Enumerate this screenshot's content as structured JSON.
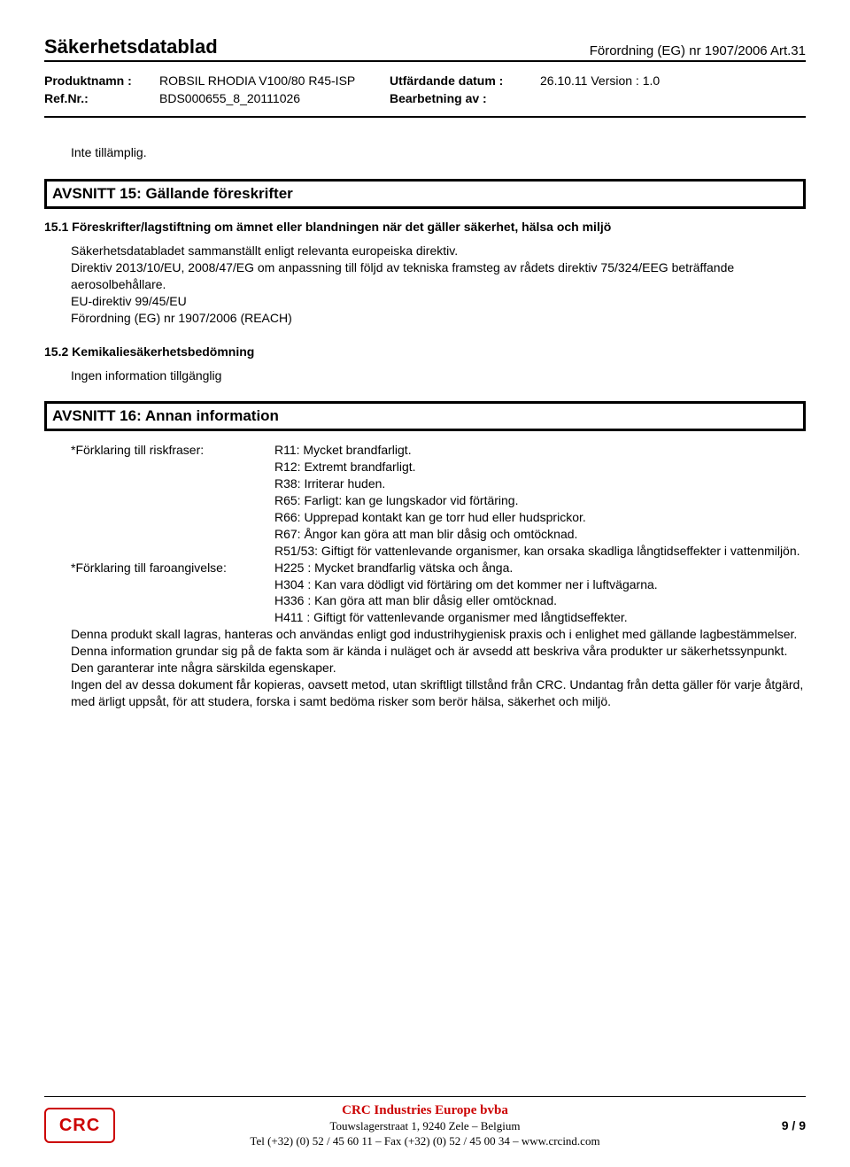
{
  "header": {
    "doc_title": "Säkerhetsdatablad",
    "regulation": "Förordning (EG) nr 1907/2006 Art.31",
    "product_label": "Produktnamn :",
    "product_value": "ROBSIL RHODIA V100/80 R45-ISP",
    "ref_label": "Ref.Nr.:",
    "ref_value": "BDS000655_8_20111026",
    "issued_label": "Utfärdande datum :",
    "issued_value": "26.10.11 Version : 1.0",
    "revision_label": "Bearbetning av :",
    "revision_value": ""
  },
  "pre_text": "Inte tillämplig.",
  "section15": {
    "title": "AVSNITT 15: Gällande föreskrifter",
    "sub1_title": "15.1 Föreskrifter/lagstiftning om ämnet eller blandningen när det gäller säkerhet, hälsa och miljö",
    "sub1_body": "Säkerhetsdatabladet sammanställt enligt relevanta europeiska direktiv.\nDirektiv 2013/10/EU, 2008/47/EG om anpassning till följd av tekniska framsteg av rådets direktiv 75/324/EEG beträffande aerosolbehållare.\nEU-direktiv 99/45/EU\nFörordning (EG) nr 1907/2006 (REACH)",
    "sub2_title": "15.2 Kemikaliesäkerhetsbedömning",
    "sub2_body": "Ingen information tillgänglig"
  },
  "section16": {
    "title": "AVSNITT 16: Annan information",
    "row1_label": "*Förklaring till riskfraser:",
    "row1_lines": [
      "R11: Mycket brandfarligt.",
      "R12: Extremt brandfarligt.",
      "R38: Irriterar huden.",
      "R65: Farligt: kan ge lungskador vid förtäring.",
      "R66: Upprepad kontakt kan ge torr hud eller hudsprickor.",
      "R67: Ångor kan göra att man blir dåsig och omtöcknad.",
      "R51/53: Giftigt för vattenlevande organismer, kan orsaka skadliga långtidseffekter i vattenmiljön."
    ],
    "row2_label": "*Förklaring till faroangivelse:",
    "row2_lines": [
      "H225 : Mycket brandfarlig vätska och ånga.",
      "H304 : Kan vara dödligt vid förtäring om det kommer ner i luftvägarna.",
      "H336 : Kan göra att man blir dåsig eller omtöcknad.",
      "H411 : Giftigt för vattenlevande organismer med långtidseffekter."
    ],
    "footer_para": "Denna produkt skall lagras, hanteras och användas enligt god industrihygienisk praxis och i enlighet med gällande lagbestämmelser.\nDenna information grundar sig på de fakta som är kända i nuläget och är avsedd att beskriva våra produkter ur säkerhetssynpunkt. Den garanterar inte några särskilda egenskaper.\nIngen del av dessa dokument får kopieras, oavsett metod, utan skriftligt tillstånd från CRC. Undantag från detta gäller för varje åtgärd, med ärligt uppsåt, för att studera, forska i samt bedöma risker som berör hälsa, säkerhet och miljö."
  },
  "footer": {
    "logo_text": "CRC",
    "company": "CRC Industries Europe bvba",
    "address": "Touwslagerstraat 1,  9240 Zele – Belgium",
    "contact": "Tel (+32) (0) 52 / 45 60 11 – Fax (+32) (0) 52 / 45 00 34 – www.crcind.com",
    "page": "9 / 9"
  }
}
